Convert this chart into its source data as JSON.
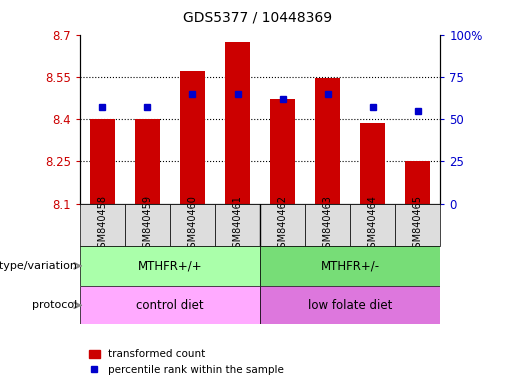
{
  "title": "GDS5377 / 10448369",
  "samples": [
    "GSM840458",
    "GSM840459",
    "GSM840460",
    "GSM840461",
    "GSM840462",
    "GSM840463",
    "GSM840464",
    "GSM840465"
  ],
  "bar_bottom": 8.1,
  "bar_tops": [
    8.4,
    8.4,
    8.57,
    8.675,
    8.47,
    8.545,
    8.385,
    8.25
  ],
  "percentile_ranks": [
    57,
    57,
    65,
    65,
    62,
    65,
    57,
    55
  ],
  "ylim_left": [
    8.1,
    8.7
  ],
  "ylim_right": [
    0,
    100
  ],
  "yticks_left": [
    8.1,
    8.25,
    8.4,
    8.55,
    8.7
  ],
  "yticks_right": [
    0,
    25,
    50,
    75,
    100
  ],
  "bar_color": "#cc0000",
  "blue_color": "#0000cc",
  "bg_color": "#ffffff",
  "bar_width": 0.55,
  "group1_label": "MTHFR+/+",
  "group2_label": "MTHFR+/-",
  "protocol1_label": "control diet",
  "protocol2_label": "low folate diet",
  "group1_color": "#aaffaa",
  "group2_color": "#77dd77",
  "protocol1_color": "#ffaaff",
  "protocol2_color": "#ffaaff",
  "protocol2_darker": "#dd77dd",
  "legend_red_label": "transformed count",
  "legend_blue_label": "percentile rank within the sample",
  "left_axis_color": "#cc0000",
  "right_axis_color": "#0000cc",
  "tick_bg_color": "#dddddd",
  "geno_label": "genotype/variation",
  "proto_label": "protocol",
  "arrow_color": "#888888"
}
